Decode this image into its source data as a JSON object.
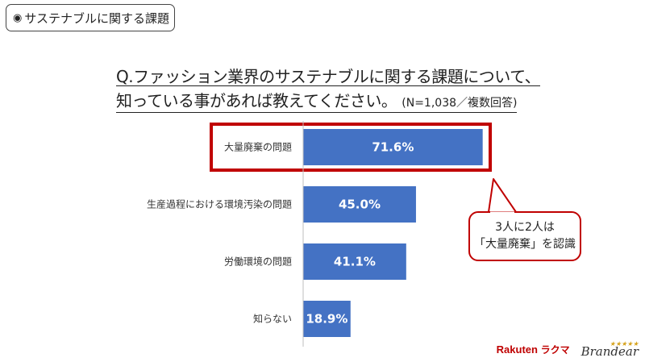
{
  "header_tag": {
    "bullet": "◉",
    "label": "サステナブルに関する課題"
  },
  "question": {
    "line1": "Q.ファッション業界のサステナブルに関する課題について、",
    "line2": "知っている事があれば教えてください。",
    "note": "(N=1,038／複数回答)"
  },
  "chart_data": {
    "type": "bar",
    "orientation": "horizontal",
    "categories": [
      "大量廃棄の問題",
      "生産過程における環境汚染の問題",
      "労働環境の問題",
      "知らない"
    ],
    "values": [
      71.6,
      45.0,
      41.1,
      18.9
    ],
    "value_labels": [
      "71.6%",
      "45.0%",
      "41.1%",
      "18.9%"
    ],
    "unit": "%",
    "bar_color": "#4472c4",
    "highlight_color": "#c00000",
    "highlighted_category": "大量廃棄の問題"
  },
  "callout": {
    "line1": "3人に2人は",
    "line2": "「大量廃棄」を認識"
  },
  "logos": {
    "rakuten": "Rakuten",
    "rakuma": "ラクマ",
    "brandear": "Brandear"
  }
}
